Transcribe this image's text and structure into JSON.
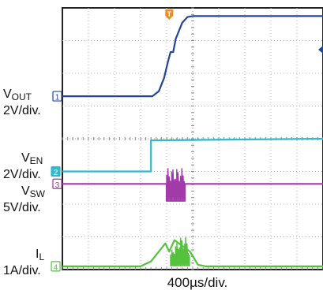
{
  "chart_data": {
    "type": "line",
    "title": "",
    "xlabel": "400µs/div.",
    "divisions": {
      "x": 10,
      "y": 8
    },
    "xlim": [
      0,
      10
    ],
    "ylim": [
      0,
      8
    ],
    "trigger_marker": "T",
    "trigger_x_div": 4.1,
    "grid": true,
    "channels": [
      {
        "number": "1",
        "name_main": "V",
        "name_sub": "OUT",
        "scale": "2V/div.",
        "color": "#22449a",
        "x": [
          0,
          3.45,
          3.7,
          3.9,
          4.05,
          4.15,
          4.25,
          4.35,
          4.6,
          4.8,
          5.0,
          5.3,
          10
        ],
        "y": [
          5.3,
          5.3,
          5.45,
          5.85,
          6.35,
          6.65,
          6.65,
          7.05,
          7.55,
          7.72,
          7.75,
          7.75,
          7.75
        ]
      },
      {
        "number": "2",
        "name_main": "V",
        "name_sub": "EN",
        "scale": "2V/div.",
        "color": "#33b9cc",
        "x": [
          0,
          3.4,
          3.4,
          10
        ],
        "y": [
          3.0,
          3.0,
          3.95,
          4.0
        ]
      },
      {
        "number": "3",
        "name_main": "V",
        "name_sub": "SW",
        "scale": "5V/div.",
        "color": "#a23aa8",
        "x": [
          0,
          4.0,
          4.0,
          4.7,
          4.7,
          10
        ],
        "y": [
          2.62,
          2.62,
          2.1,
          2.1,
          2.62,
          2.62
        ],
        "burst_x": [
          4.0,
          4.7
        ],
        "burst_y": [
          2.1,
          3.1
        ]
      },
      {
        "number": "4",
        "name_main": "I",
        "name_sub": "L",
        "scale": "1A/div.",
        "color": "#55c23b",
        "x": [
          0,
          3.0,
          3.4,
          3.7,
          3.95,
          4.1,
          4.3,
          4.9,
          5.2,
          5.5,
          10
        ],
        "y": [
          0.1,
          0.1,
          0.25,
          0.55,
          0.8,
          0.55,
          0.9,
          0.55,
          0.15,
          0.1,
          0.1
        ],
        "burst_x": [
          4.15,
          4.9
        ],
        "burst_y": [
          0.1,
          1.0
        ]
      }
    ]
  }
}
